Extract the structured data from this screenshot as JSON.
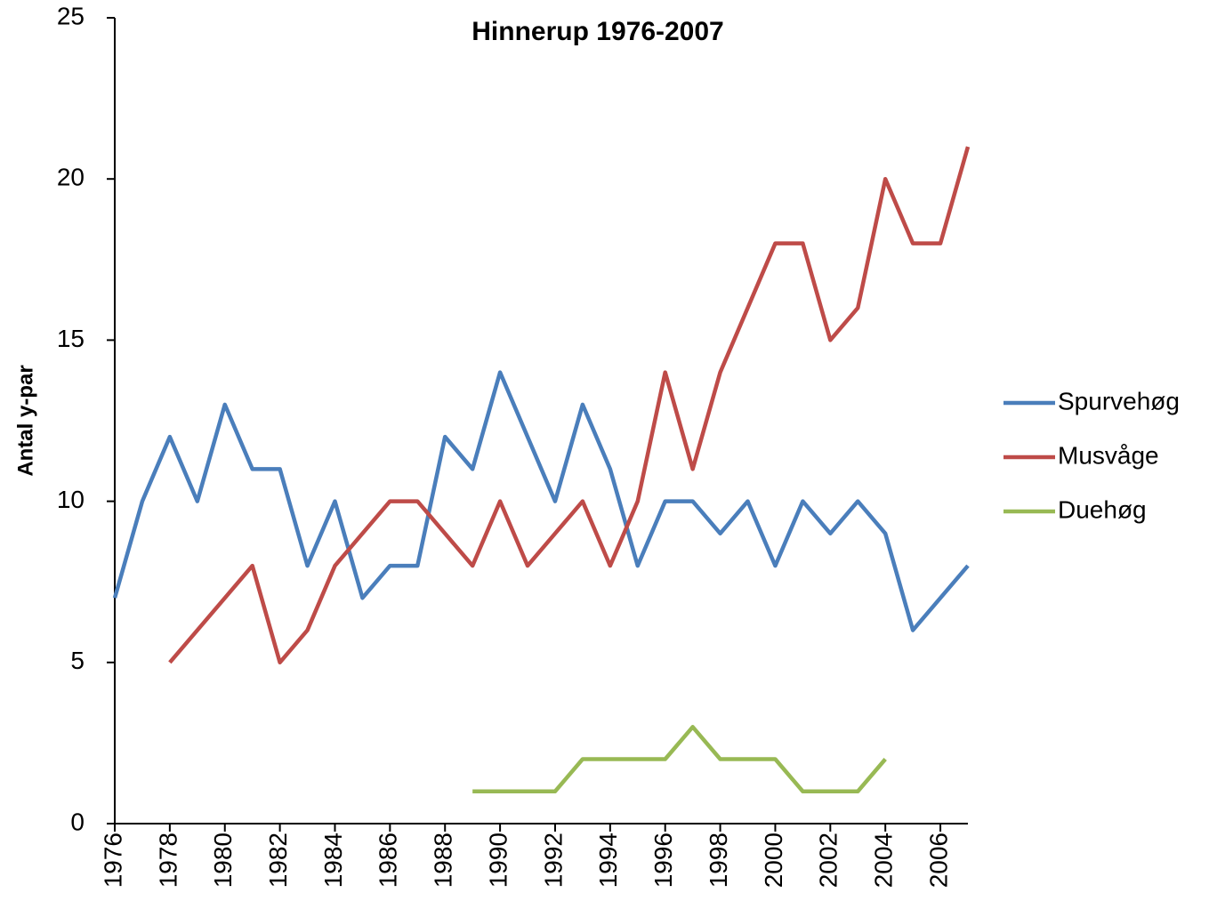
{
  "chart_data": {
    "type": "line",
    "title": "Hinnerup 1976-2007",
    "y_label": "Antal y-par",
    "x": [
      1976,
      1977,
      1978,
      1979,
      1980,
      1981,
      1982,
      1983,
      1984,
      1985,
      1986,
      1987,
      1988,
      1989,
      1990,
      1991,
      1992,
      1993,
      1994,
      1995,
      1996,
      1997,
      1998,
      1999,
      2000,
      2001,
      2002,
      2003,
      2004,
      2005,
      2006,
      2007
    ],
    "series": [
      {
        "name": "Spurvehøg",
        "color": "#4a7ebb",
        "values": [
          7,
          10,
          12,
          10,
          13,
          11,
          11,
          8,
          10,
          7,
          8,
          8,
          12,
          11,
          14,
          12,
          10,
          13,
          11,
          8,
          10,
          10,
          9,
          10,
          8,
          10,
          9,
          10,
          9,
          6,
          7,
          8
        ]
      },
      {
        "name": "Musvåge",
        "color": "#be4b48",
        "values": [
          null,
          null,
          5,
          6,
          7,
          8,
          5,
          6,
          8,
          9,
          10,
          10,
          9,
          8,
          10,
          8,
          9,
          10,
          8,
          10,
          14,
          11,
          14,
          16,
          18,
          18,
          15,
          16,
          20,
          18,
          18,
          21
        ]
      },
      {
        "name": "Duehøg",
        "color": "#98b954",
        "values": [
          null,
          null,
          null,
          null,
          null,
          null,
          null,
          null,
          null,
          null,
          null,
          null,
          null,
          1,
          1,
          1,
          1,
          2,
          2,
          2,
          2,
          3,
          2,
          2,
          2,
          1,
          1,
          1,
          2,
          null,
          null,
          null
        ]
      }
    ],
    "xlim": [
      1976,
      2007
    ],
    "xticks": [
      1976,
      1978,
      1980,
      1982,
      1984,
      1986,
      1988,
      1990,
      1992,
      1994,
      1996,
      1998,
      2000,
      2002,
      2004,
      2006
    ],
    "ylim": [
      0,
      25
    ],
    "yticks": [
      0,
      5,
      10,
      15,
      20,
      25
    ],
    "grid": false,
    "legend": "right"
  }
}
